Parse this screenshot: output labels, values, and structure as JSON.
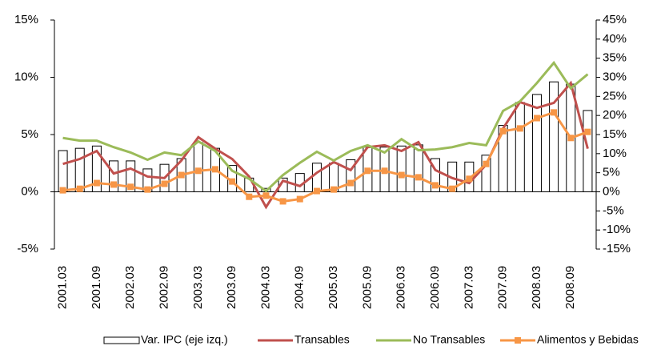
{
  "chart_data": {
    "type": "bar",
    "categories": [
      "2001.03",
      null,
      "2001.09",
      null,
      "2002.03",
      null,
      "2002.09",
      null,
      "2003.03",
      null,
      "2003.09",
      null,
      "2004.03",
      null,
      "2004.09",
      null,
      "2005.03",
      null,
      "2005.09",
      null,
      "2006.03",
      null,
      "2006.09",
      null,
      "2007.03",
      null,
      "2007.09",
      null,
      "2008.03",
      null,
      "2008.09",
      null
    ],
    "series": [
      {
        "name": "Var. IPC (eje izq.)",
        "type": "bar",
        "axis": "y",
        "color": "#ffffff",
        "values": [
          3.6,
          3.8,
          4.0,
          2.7,
          2.7,
          2.0,
          2.4,
          2.9,
          4.3,
          3.8,
          2.3,
          1.2,
          0.3,
          1.2,
          1.6,
          2.5,
          2.5,
          2.8,
          3.9,
          3.9,
          4.0,
          4.1,
          2.9,
          2.6,
          2.6,
          3.2,
          5.8,
          7.8,
          8.5,
          9.6,
          9.4,
          7.1
        ]
      },
      {
        "name": "Transables",
        "type": "line",
        "axis": "y2",
        "color": "#c0504d",
        "values": [
          7.3,
          8.6,
          10.7,
          4.8,
          6.1,
          4.0,
          3.6,
          8.2,
          14.3,
          11.3,
          8.6,
          4.0,
          -4.0,
          2.9,
          1.5,
          5.0,
          7.8,
          5.7,
          11.7,
          12.2,
          10.7,
          13.0,
          5.7,
          3.6,
          2.3,
          7.1,
          16.6,
          23.5,
          22.0,
          23.3,
          28.5,
          11.3
        ]
      },
      {
        "name": "No Transables",
        "type": "line",
        "axis": "y2",
        "color": "#9bbb59",
        "values": [
          14.1,
          13.4,
          13.4,
          11.7,
          10.3,
          8.4,
          10.3,
          9.6,
          13.2,
          10.7,
          5.5,
          3.4,
          0.2,
          4.4,
          7.6,
          10.5,
          8.2,
          10.7,
          12.2,
          10.3,
          13.8,
          10.9,
          11.1,
          11.7,
          12.8,
          12.2,
          21.2,
          23.7,
          28.5,
          33.8,
          27.1,
          30.8
        ]
      },
      {
        "name": "Alimentos y Bebidas",
        "type": "line",
        "axis": "y2",
        "color": "#f79646",
        "marker": "square",
        "values": [
          0.4,
          0.8,
          2.3,
          1.9,
          1.3,
          0.6,
          2.1,
          4.4,
          5.5,
          5.9,
          2.7,
          -1.3,
          -1.0,
          -2.5,
          -1.9,
          0.2,
          0.6,
          2.3,
          5.5,
          5.5,
          4.4,
          3.8,
          1.7,
          0.8,
          3.4,
          7.3,
          15.9,
          16.6,
          19.3,
          20.8,
          14.1,
          15.7
        ]
      }
    ],
    "ylim": [
      -5,
      15
    ],
    "yticks": [
      {
        "value": -5,
        "label": "-5%"
      },
      {
        "value": 0,
        "label": "0%"
      },
      {
        "value": 5,
        "label": "5%"
      },
      {
        "value": 10,
        "label": "10%"
      },
      {
        "value": 15,
        "label": "15%"
      }
    ],
    "y2lim": [
      -15,
      45
    ],
    "y2ticks": [
      {
        "value": -15,
        "label": "-15%"
      },
      {
        "value": -10,
        "label": "-10%"
      },
      {
        "value": -5,
        "label": "-5%"
      },
      {
        "value": 0,
        "label": "0%"
      },
      {
        "value": 5,
        "label": "5%"
      },
      {
        "value": 10,
        "label": "10%"
      },
      {
        "value": 15,
        "label": "15%"
      },
      {
        "value": 20,
        "label": "20%"
      },
      {
        "value": 25,
        "label": "25%"
      },
      {
        "value": 30,
        "label": "30%"
      },
      {
        "value": 35,
        "label": "35%"
      },
      {
        "value": 40,
        "label": "40%"
      },
      {
        "value": 45,
        "label": "45%"
      }
    ],
    "legend": "bottom"
  }
}
